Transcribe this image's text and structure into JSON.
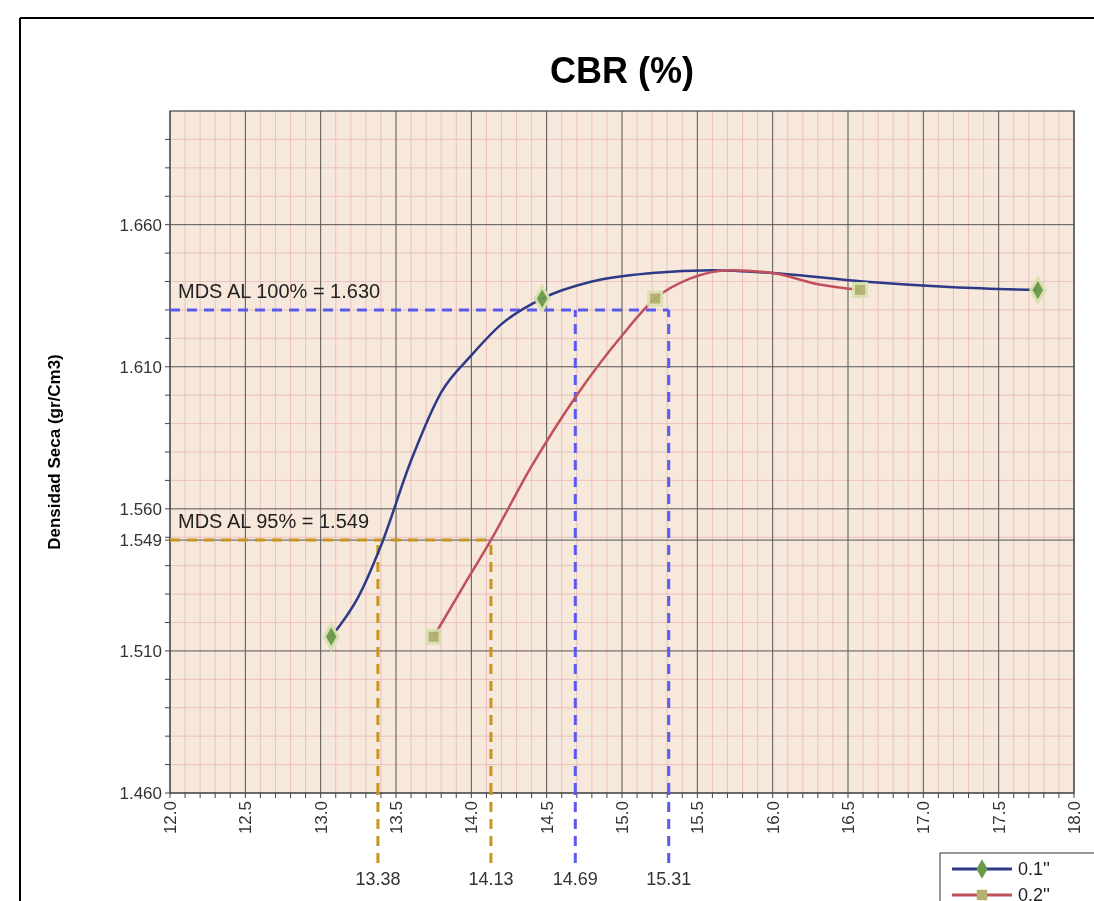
{
  "chart_data": {
    "type": "line",
    "title": "CBR  (%)",
    "ylabel": "Densidad Seca (gr/Cm3)",
    "xlim": [
      12.0,
      18.0
    ],
    "xticks": [
      {
        "value": 12,
        "label": "12.0"
      },
      {
        "value": 12.5,
        "label": "12.5"
      },
      {
        "value": 13,
        "label": "13.0"
      },
      {
        "value": 13.5,
        "label": "13.5"
      },
      {
        "value": 14,
        "label": "14.0"
      },
      {
        "value": 14.5,
        "label": "14.5"
      },
      {
        "value": 15,
        "label": "15.0"
      },
      {
        "value": 15.5,
        "label": "15.5"
      },
      {
        "value": 16,
        "label": "16.0"
      },
      {
        "value": 16.5,
        "label": "16.5"
      },
      {
        "value": 17,
        "label": "17.0"
      },
      {
        "value": 17.5,
        "label": "17.5"
      },
      {
        "value": 18,
        "label": "18.0"
      },
      {
        "value": 12.1,
        "label": null
      },
      {
        "value": 12.2,
        "label": null
      },
      {
        "value": 12.3,
        "label": null
      },
      {
        "value": 12.4,
        "label": null
      },
      {
        "value": 12.6,
        "label": null
      },
      {
        "value": 12.7,
        "label": null
      },
      {
        "value": 12.8,
        "label": null
      },
      {
        "value": 12.9,
        "label": null
      },
      {
        "value": 13.1,
        "label": null
      },
      {
        "value": 13.2,
        "label": null
      },
      {
        "value": 13.3,
        "label": null
      },
      {
        "value": 13.4,
        "label": null
      },
      {
        "value": 13.6,
        "label": null
      },
      {
        "value": 13.7,
        "label": null
      },
      {
        "value": 13.8,
        "label": null
      },
      {
        "value": 13.9,
        "label": null
      },
      {
        "value": 14.1,
        "label": null
      },
      {
        "value": 14.2,
        "label": null
      },
      {
        "value": 14.3,
        "label": null
      },
      {
        "value": 14.4,
        "label": null
      },
      {
        "value": 14.6,
        "label": null
      },
      {
        "value": 14.7,
        "label": null
      },
      {
        "value": 14.8,
        "label": null
      },
      {
        "value": 14.9,
        "label": null
      },
      {
        "value": 15.1,
        "label": null
      },
      {
        "value": 15.2,
        "label": null
      },
      {
        "value": 15.3,
        "label": null
      },
      {
        "value": 15.4,
        "label": null
      },
      {
        "value": 15.6,
        "label": null
      },
      {
        "value": 15.7,
        "label": null
      },
      {
        "value": 15.8,
        "label": null
      },
      {
        "value": 15.9,
        "label": null
      },
      {
        "value": 16.1,
        "label": null
      },
      {
        "value": 16.2,
        "label": null
      },
      {
        "value": 16.3,
        "label": null
      },
      {
        "value": 16.4,
        "label": null
      },
      {
        "value": 16.6,
        "label": null
      },
      {
        "value": 16.7,
        "label": null
      },
      {
        "value": 16.8,
        "label": null
      },
      {
        "value": 16.9,
        "label": null
      },
      {
        "value": 17.1,
        "label": null
      },
      {
        "value": 17.2,
        "label": null
      },
      {
        "value": 17.3,
        "label": null
      },
      {
        "value": 17.4,
        "label": null
      },
      {
        "value": 17.6,
        "label": null
      },
      {
        "value": 17.7,
        "label": null
      },
      {
        "value": 17.8,
        "label": null
      },
      {
        "value": 17.9,
        "label": null
      }
    ],
    "ylim": [
      1.46,
      1.7
    ],
    "yticks": [
      {
        "value": 1.46,
        "label": "1.460"
      },
      {
        "value": 1.51,
        "label": "1.510"
      },
      {
        "value": 1.56,
        "label": "1.560"
      },
      {
        "value": 1.61,
        "label": "1.610"
      },
      {
        "value": 1.66,
        "label": "1.660"
      },
      {
        "value": 1.549,
        "label": "1.549"
      },
      {
        "value": 1.47,
        "label": null
      },
      {
        "value": 1.48,
        "label": null
      },
      {
        "value": 1.49,
        "label": null
      },
      {
        "value": 1.5,
        "label": null
      },
      {
        "value": 1.52,
        "label": null
      },
      {
        "value": 1.53,
        "label": null
      },
      {
        "value": 1.54,
        "label": null
      },
      {
        "value": 1.55,
        "label": null
      },
      {
        "value": 1.57,
        "label": null
      },
      {
        "value": 1.58,
        "label": null
      },
      {
        "value": 1.59,
        "label": null
      },
      {
        "value": 1.6,
        "label": null
      },
      {
        "value": 1.62,
        "label": null
      },
      {
        "value": 1.63,
        "label": null
      },
      {
        "value": 1.64,
        "label": null
      },
      {
        "value": 1.65,
        "label": null
      },
      {
        "value": 1.67,
        "label": null
      },
      {
        "value": 1.68,
        "label": null
      },
      {
        "value": 1.69,
        "label": null
      }
    ],
    "grid": true,
    "legend": "bottom right",
    "series": [
      {
        "name": "0.1''",
        "color": "#2e3a87",
        "marker": "none",
        "x": [
          13.07,
          13.25,
          13.4,
          13.6,
          13.8,
          14.0,
          14.2,
          14.47,
          14.8,
          15.2,
          15.6,
          16.0,
          16.6,
          17.2,
          17.76
        ],
        "values": [
          1.515,
          1.529,
          1.547,
          1.577,
          1.601,
          1.614,
          1.625,
          1.634,
          1.64,
          1.643,
          1.644,
          1.643,
          1.64,
          1.638,
          1.637
        ]
      },
      {
        "name": "0.2''",
        "color": "#c0505a",
        "marker": "none",
        "x": [
          13.75,
          13.95,
          14.13,
          14.4,
          14.7,
          15.0,
          15.22,
          15.45,
          15.72,
          16.0,
          16.3,
          16.58
        ],
        "values": [
          1.515,
          1.533,
          1.549,
          1.575,
          1.6,
          1.621,
          1.634,
          1.641,
          1.644,
          1.643,
          1.639,
          1.637
        ]
      },
      {
        "type": "scatter",
        "color": "#6a9a4a",
        "marker": "diamond",
        "x": [
          13.07,
          14.47,
          17.76
        ],
        "values": [
          1.515,
          1.634,
          1.637
        ]
      },
      {
        "type": "scatter",
        "color": "#b3b070",
        "marker": "square",
        "x": [
          13.75,
          15.22,
          16.58
        ],
        "values": [
          1.515,
          1.634,
          1.637
        ]
      }
    ],
    "ref_lines": [
      {
        "axis": "y",
        "value": 1.63,
        "label": "MDS AL 100% = 1.630",
        "color": "#5a5af0",
        "line_style": "dashed"
      },
      {
        "axis": "y",
        "value": 1.549,
        "label": "MDS AL 95% = 1.549",
        "color": "#c8961e",
        "line_style": "dashed"
      },
      {
        "axis": "x",
        "value": 13.38,
        "label": "13.38",
        "color": "#c8961e",
        "line_style": "dashed"
      },
      {
        "axis": "x",
        "value": 14.13,
        "label": "14.13",
        "color": "#c8961e",
        "line_style": "dashed"
      },
      {
        "axis": "x",
        "value": 14.69,
        "label": "14.69",
        "color": "#5a5af0",
        "line_style": "dashed"
      },
      {
        "axis": "x",
        "value": 15.31,
        "label": "15.31",
        "color": "#5a5af0",
        "line_style": "dashed"
      }
    ]
  }
}
